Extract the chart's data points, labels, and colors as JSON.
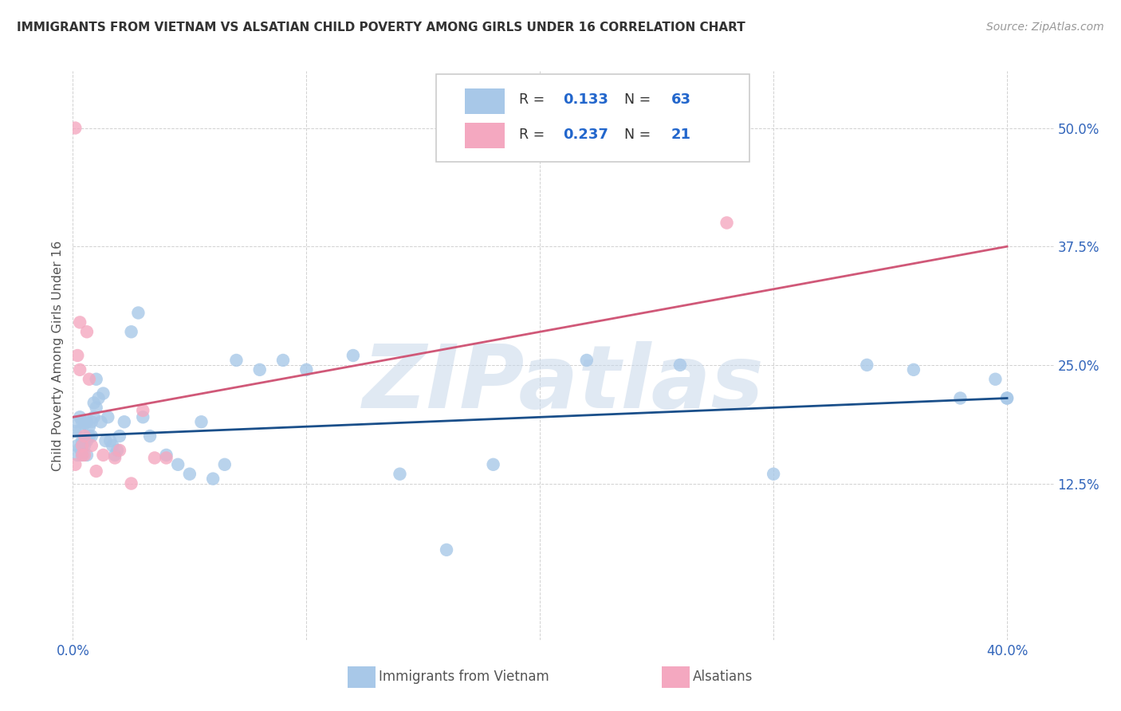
{
  "title": "IMMIGRANTS FROM VIETNAM VS ALSATIAN CHILD POVERTY AMONG GIRLS UNDER 16 CORRELATION CHART",
  "source": "Source: ZipAtlas.com",
  "ylabel": "Child Poverty Among Girls Under 16",
  "xlim": [
    0.0,
    0.42
  ],
  "ylim": [
    -0.04,
    0.56
  ],
  "r_blue": 0.133,
  "n_blue": 63,
  "r_pink": 0.237,
  "n_pink": 21,
  "blue_color": "#a8c8e8",
  "pink_color": "#f4a8c0",
  "line_blue": "#1a4f8a",
  "line_pink": "#d05878",
  "watermark": "ZIPatlas",
  "blue_line_start_y": 0.175,
  "blue_line_end_y": 0.215,
  "pink_line_start_y": 0.195,
  "pink_line_end_y": 0.375,
  "blue_x": [
    0.001,
    0.001,
    0.002,
    0.002,
    0.003,
    0.003,
    0.003,
    0.004,
    0.004,
    0.004,
    0.004,
    0.005,
    0.005,
    0.005,
    0.006,
    0.006,
    0.006,
    0.007,
    0.007,
    0.008,
    0.008,
    0.009,
    0.009,
    0.01,
    0.01,
    0.011,
    0.012,
    0.013,
    0.014,
    0.015,
    0.016,
    0.017,
    0.018,
    0.019,
    0.02,
    0.022,
    0.025,
    0.028,
    0.03,
    0.033,
    0.04,
    0.045,
    0.05,
    0.055,
    0.06,
    0.065,
    0.07,
    0.08,
    0.09,
    0.1,
    0.12,
    0.14,
    0.16,
    0.18,
    0.22,
    0.26,
    0.3,
    0.34,
    0.36,
    0.38,
    0.395,
    0.4,
    0.4
  ],
  "blue_y": [
    0.18,
    0.19,
    0.165,
    0.155,
    0.162,
    0.195,
    0.18,
    0.19,
    0.17,
    0.165,
    0.155,
    0.17,
    0.188,
    0.165,
    0.155,
    0.19,
    0.17,
    0.185,
    0.175,
    0.19,
    0.175,
    0.21,
    0.195,
    0.235,
    0.205,
    0.215,
    0.19,
    0.22,
    0.17,
    0.195,
    0.17,
    0.165,
    0.155,
    0.16,
    0.175,
    0.19,
    0.285,
    0.305,
    0.195,
    0.175,
    0.155,
    0.145,
    0.135,
    0.19,
    0.13,
    0.145,
    0.255,
    0.245,
    0.255,
    0.245,
    0.26,
    0.135,
    0.055,
    0.145,
    0.255,
    0.25,
    0.135,
    0.25,
    0.245,
    0.215,
    0.235,
    0.215,
    0.215
  ],
  "pink_x": [
    0.001,
    0.001,
    0.002,
    0.003,
    0.003,
    0.004,
    0.004,
    0.005,
    0.005,
    0.006,
    0.007,
    0.008,
    0.01,
    0.013,
    0.018,
    0.02,
    0.025,
    0.03,
    0.035,
    0.04,
    0.28
  ],
  "pink_y": [
    0.5,
    0.145,
    0.26,
    0.295,
    0.245,
    0.165,
    0.155,
    0.175,
    0.155,
    0.285,
    0.235,
    0.165,
    0.138,
    0.155,
    0.152,
    0.16,
    0.125,
    0.202,
    0.152,
    0.152,
    0.4
  ]
}
